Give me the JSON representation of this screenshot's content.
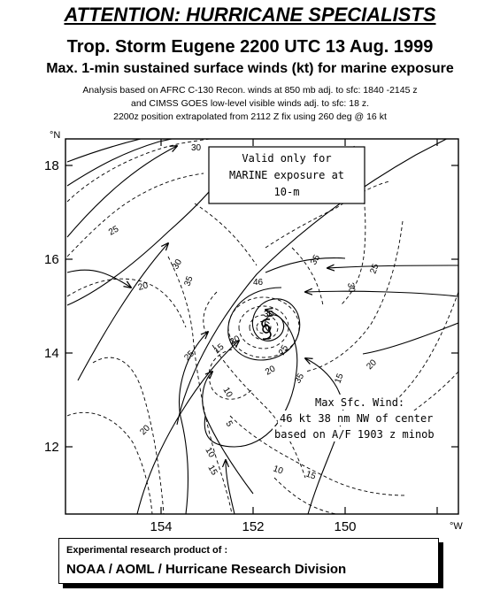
{
  "header": {
    "attention": "ATTENTION: HURRICANE SPECIALISTS",
    "title": "Trop. Storm Eugene 2200 UTC 13 Aug. 1999",
    "subtitle": "Max. 1-min sustained surface winds (kt) for marine exposure",
    "analysis_lines": [
      "Analysis based on AFRC C-130  Recon. winds at 850 mb adj. to sfc: 1840 -2145 z",
      "and CIMSS GOES low-level visible winds adj. to sfc: 18 z.",
      "2200z position extrapolated from 2112 Z fix  using 260 deg @ 16 kt"
    ]
  },
  "map": {
    "lat_unit": "°N",
    "lon_unit": "°W",
    "lat_ticks": [
      "18",
      "16",
      "14",
      "12"
    ],
    "lon_ticks": [
      "154",
      "152",
      "150"
    ],
    "valid_box": [
      "Valid only for",
      "MARINE exposure at",
      "10-m"
    ],
    "max_wind_note": [
      "Max Sfc. Wind:",
      "46 kt  38 nm NW of center",
      "based on A/F 1903 z minob"
    ],
    "contour_labels": [
      "30",
      "25",
      "20",
      "30",
      "35",
      "35",
      "46",
      "30",
      "25",
      "20",
      "25",
      "15",
      "20",
      "25",
      "10",
      "15",
      "20",
      "10",
      "15",
      "10",
      "15",
      "5",
      "20",
      "35",
      "30"
    ],
    "storm_center": {
      "lat": 14.5,
      "lon": 151.9
    }
  },
  "footer": {
    "line1": "Experimental research product of :",
    "line2": "NOAA / AOML / Hurricane Research Division"
  },
  "colors": {
    "ink": "#000000",
    "background": "#ffffff"
  }
}
